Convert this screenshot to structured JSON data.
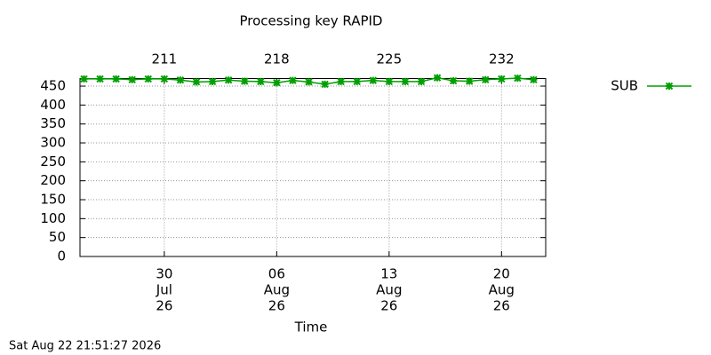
{
  "chart_data": {
    "type": "line",
    "title": "Processing key RAPID",
    "xlabel": "Time",
    "footer": "Sat Aug 22 21:51:27 2026",
    "x": [
      "2026-07-25",
      "2026-07-26",
      "2026-07-27",
      "2026-07-28",
      "2026-07-29",
      "2026-07-30",
      "2026-07-31",
      "2026-08-01",
      "2026-08-02",
      "2026-08-03",
      "2026-08-04",
      "2026-08-05",
      "2026-08-06",
      "2026-08-07",
      "2026-08-08",
      "2026-08-09",
      "2026-08-10",
      "2026-08-11",
      "2026-08-12",
      "2026-08-13",
      "2026-08-14",
      "2026-08-15",
      "2026-08-16",
      "2026-08-17",
      "2026-08-18",
      "2026-08-19",
      "2026-08-20",
      "2026-08-21",
      "2026-08-22"
    ],
    "series": [
      {
        "name": "SUB",
        "color": "#00a000",
        "values": [
          469,
          469,
          469,
          467,
          469,
          469,
          466,
          461,
          462,
          466,
          463,
          462,
          459,
          465,
          461,
          455,
          462,
          462,
          465,
          462,
          462,
          462,
          472,
          464,
          463,
          467,
          469,
          471,
          467
        ]
      }
    ],
    "xlim": [
      "2026-07-24T18:00",
      "2026-08-22T18:00"
    ],
    "xticks": [
      {
        "value": "2026-07-30",
        "label": [
          "30",
          "Jul",
          "26"
        ]
      },
      {
        "value": "2026-08-06",
        "label": [
          "06",
          "Aug",
          "26"
        ]
      },
      {
        "value": "2026-08-13",
        "label": [
          "13",
          "Aug",
          "26"
        ]
      },
      {
        "value": "2026-08-20",
        "label": [
          "20",
          "Aug",
          "26"
        ]
      }
    ],
    "x2lim": [
      205.75,
      234.75
    ],
    "x2ticks": [
      211,
      218,
      225,
      232
    ],
    "ylim": [
      0,
      470
    ],
    "yticks": [
      0,
      50,
      100,
      150,
      200,
      250,
      300,
      350,
      400,
      450
    ],
    "grid": true,
    "legend": "right"
  }
}
